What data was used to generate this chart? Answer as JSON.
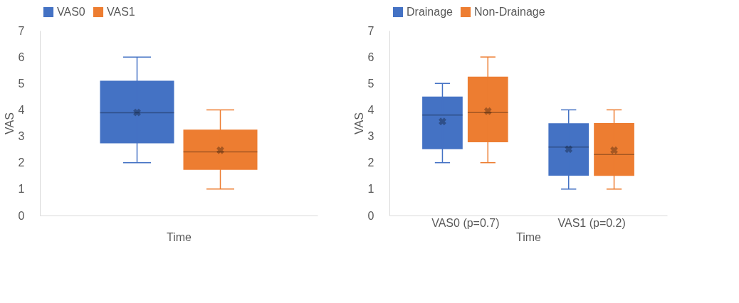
{
  "chart_data": [
    {
      "type": "box",
      "categories": [
        null
      ],
      "xlabel": "Time",
      "ylabel": "VAS",
      "ylim": [
        0,
        7
      ],
      "yticks": [
        0,
        1,
        2,
        3,
        4,
        5,
        6,
        7
      ],
      "grid": false,
      "legend": "top",
      "series": [
        {
          "name": "VAS0",
          "color": "#4472c4",
          "boxes": [
            {
              "low": 2,
              "q1": 2.73,
              "median": 3.89,
              "q3": 5.1,
              "high": 6,
              "mean": 3.9
            }
          ]
        },
        {
          "name": "VAS1",
          "color": "#ed7d31",
          "boxes": [
            {
              "low": 1,
              "q1": 1.73,
              "median": 2.41,
              "q3": 3.25,
              "high": 4,
              "mean": 2.47
            }
          ]
        }
      ]
    },
    {
      "type": "box",
      "categories": [
        "VAS0 (p=0.7)",
        "VAS1 (p=0.2)"
      ],
      "xlabel": "Time",
      "ylabel": "VAS",
      "ylim": [
        0,
        7
      ],
      "yticks": [
        0,
        1,
        2,
        3,
        4,
        5,
        6,
        7
      ],
      "grid": false,
      "legend": "top",
      "series": [
        {
          "name": "Drainage",
          "color": "#4472c4",
          "boxes": [
            {
              "low": 2,
              "q1": 2.51,
              "median": 3.8,
              "q3": 4.5,
              "high": 5,
              "mean": 3.56
            },
            {
              "low": 1,
              "q1": 1.51,
              "median": 2.59,
              "q3": 3.49,
              "high": 4,
              "mean": 2.51
            }
          ]
        },
        {
          "name": "Non-Drainage",
          "color": "#ed7d31",
          "boxes": [
            {
              "low": 2,
              "q1": 2.77,
              "median": 3.9,
              "q3": 5.26,
              "high": 6,
              "mean": 3.95
            },
            {
              "low": 1,
              "q1": 1.5,
              "median": 2.31,
              "q3": 3.5,
              "high": 4,
              "mean": 2.47
            }
          ]
        }
      ]
    }
  ]
}
